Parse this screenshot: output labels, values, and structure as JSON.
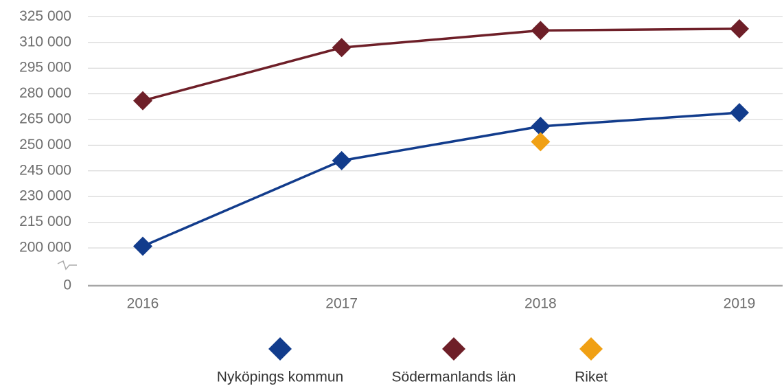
{
  "chart_data": {
    "type": "line",
    "categories": [
      "2016",
      "2017",
      "2018",
      "2019"
    ],
    "series": [
      {
        "name": "Nyköpings kommun",
        "color": "#123c8c",
        "values": [
          201000,
          247000,
          261000,
          269000
        ]
      },
      {
        "name": "Södermanlands län",
        "color": "#6e1f28",
        "values": [
          276000,
          307000,
          317000,
          318000
        ]
      },
      {
        "name": "Riket",
        "color": "#f0a014",
        "values": [
          null,
          null,
          252000,
          null
        ]
      }
    ],
    "ylim": [
      0,
      325000
    ],
    "yticks": [
      {
        "value": 0,
        "label": "0"
      },
      {
        "value": 200000,
        "label": "200 000"
      },
      {
        "value": 215000,
        "label": "215 000"
      },
      {
        "value": 230000,
        "label": "230 000"
      },
      {
        "value": 245000,
        "label": "245 000"
      },
      {
        "value": 250000,
        "label": "250 000"
      },
      {
        "value": 265000,
        "label": "265 000"
      },
      {
        "value": 280000,
        "label": "280 000"
      },
      {
        "value": 295000,
        "label": "295 000"
      },
      {
        "value": 310000,
        "label": "310 000"
      },
      {
        "value": 325000,
        "label": "325 000"
      }
    ],
    "grid": true,
    "legend": "bottom"
  }
}
